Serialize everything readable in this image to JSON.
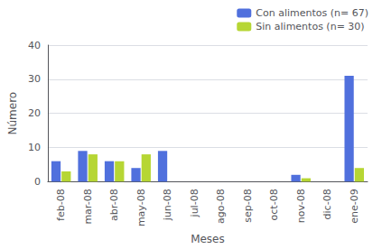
{
  "chart_data": {
    "type": "bar",
    "xlabel": "Meses",
    "ylabel": "Número",
    "categories": [
      "feb-08",
      "mar-08",
      "abr-08",
      "may-08",
      "jun-08",
      "jul-08",
      "ago-08",
      "sep-08",
      "oct-08",
      "nov-08",
      "dic-08",
      "ene-09"
    ],
    "series": [
      {
        "name": "Con alimentos (n= 67)",
        "values": [
          6,
          9,
          6,
          4,
          9,
          0,
          0,
          0,
          0,
          2,
          0,
          31
        ]
      },
      {
        "name": "Sin alimentos (n= 30)",
        "values": [
          3,
          8,
          6,
          8,
          0,
          0,
          0,
          0,
          0,
          1,
          0,
          4
        ]
      }
    ],
    "ylim": [
      0,
      40
    ],
    "yticks": [
      0,
      10,
      20,
      30,
      40
    ],
    "grid": true,
    "legend": "upper right"
  }
}
